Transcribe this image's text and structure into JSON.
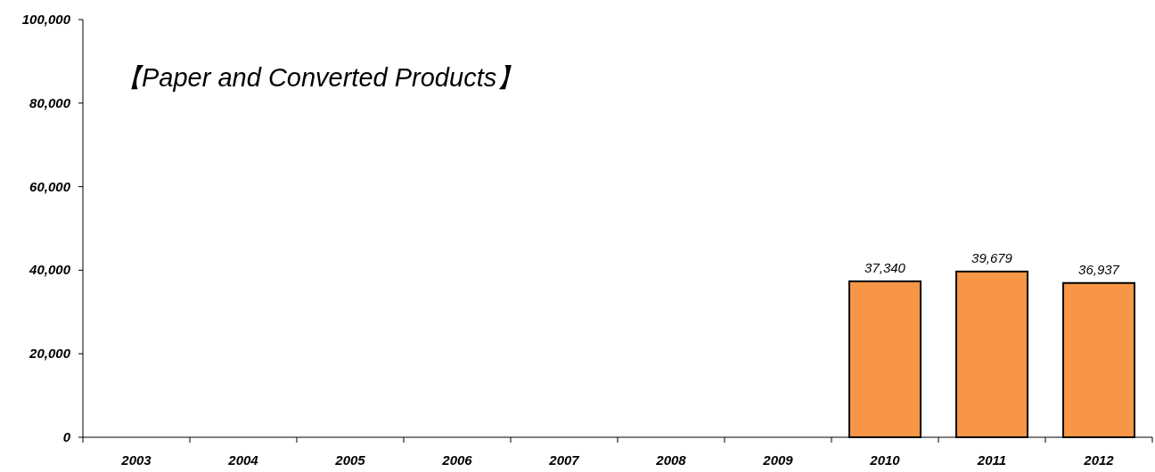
{
  "chart_data": {
    "type": "bar",
    "title": "【Paper and Converted Products】",
    "categories": [
      "2003",
      "2004",
      "2005",
      "2006",
      "2007",
      "2008",
      "2009",
      "2010",
      "2011",
      "2012"
    ],
    "values": [
      null,
      null,
      null,
      null,
      null,
      null,
      null,
      37340,
      39679,
      36937
    ],
    "value_labels": [
      null,
      null,
      null,
      null,
      null,
      null,
      null,
      "37,340",
      "39,679",
      "36,937"
    ],
    "color": "#f79646",
    "grid": false,
    "ylim": [
      0,
      100000
    ],
    "yticks": [
      {
        "value": 0,
        "label": "0"
      },
      {
        "value": 20000,
        "label": "20,000"
      },
      {
        "value": 40000,
        "label": "40,000"
      },
      {
        "value": 60000,
        "label": "60,000"
      },
      {
        "value": 80000,
        "label": "80,000"
      },
      {
        "value": 100000,
        "label": "100,000"
      }
    ]
  }
}
